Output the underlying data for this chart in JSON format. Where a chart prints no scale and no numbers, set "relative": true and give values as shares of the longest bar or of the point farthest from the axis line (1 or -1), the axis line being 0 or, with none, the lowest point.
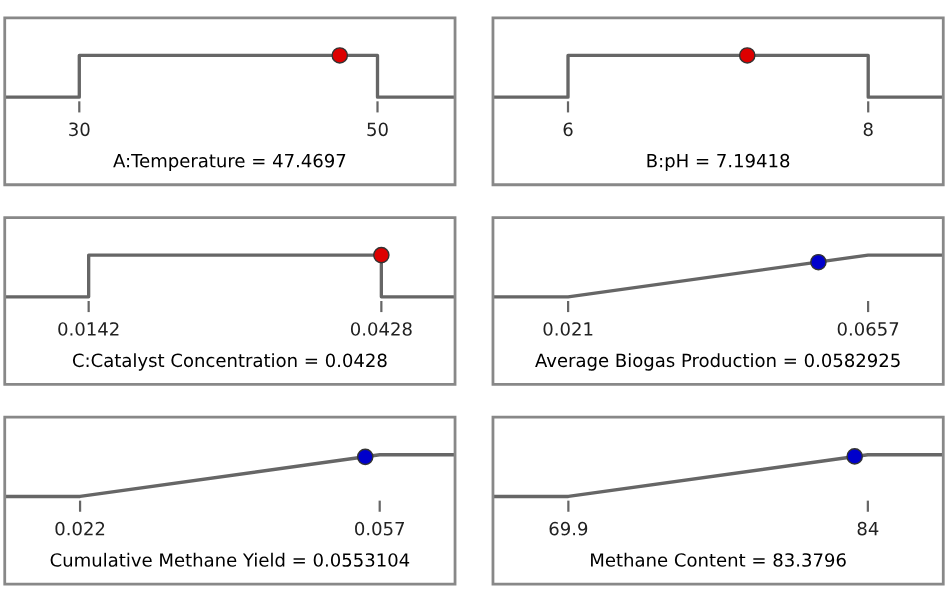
{
  "chart_data": [
    {
      "type": "line",
      "relative": true,
      "xlim": [
        25,
        55.2
      ],
      "xticks": [
        30,
        50
      ],
      "xlabel": "A:Temperature = 47.4697",
      "series": [
        {
          "color": "#666666",
          "x": [
            25,
            30,
            30,
            50,
            50,
            55.2
          ],
          "values": [
            0,
            0,
            1,
            1,
            0,
            0
          ]
        },
        {
          "type": "scatter",
          "marker": "circle",
          "color": "#dd0000",
          "x": [
            47.4697
          ],
          "values": [
            1
          ]
        }
      ]
    },
    {
      "type": "line",
      "relative": true,
      "xlim": [
        5.5,
        8.5
      ],
      "xticks": [
        6,
        8
      ],
      "xlabel": "B:pH = 7.19418",
      "series": [
        {
          "color": "#666666",
          "x": [
            5.5,
            6,
            6,
            8,
            8,
            8.5
          ],
          "values": [
            0,
            0,
            1,
            1,
            0,
            0
          ]
        },
        {
          "type": "scatter",
          "marker": "circle",
          "color": "#dd0000",
          "x": [
            7.19418
          ],
          "values": [
            1
          ]
        }
      ]
    },
    {
      "type": "line",
      "relative": true,
      "xlim": [
        0.006,
        0.05
      ],
      "xticks": [
        0.0142,
        0.0428
      ],
      "xlabel": "C:Catalyst Concentration = 0.0428",
      "series": [
        {
          "color": "#666666",
          "x": [
            0.006,
            0.0142,
            0.0142,
            0.0428,
            0.0428,
            0.05
          ],
          "values": [
            0,
            0,
            1,
            1,
            0,
            0
          ]
        },
        {
          "type": "scatter",
          "marker": "circle",
          "color": "#dd0000",
          "x": [
            0.0428
          ],
          "values": [
            1
          ]
        }
      ]
    },
    {
      "type": "line",
      "relative": true,
      "xlim": [
        0.0098,
        0.0769
      ],
      "xticks": [
        0.021,
        0.0657
      ],
      "xlabel": "Average Biogas Production = 0.0582925",
      "series": [
        {
          "color": "#666666",
          "x": [
            0.0098,
            0.021,
            0.0657,
            0.0769
          ],
          "values": [
            0,
            0,
            1,
            1
          ]
        },
        {
          "type": "scatter",
          "marker": "circle",
          "color": "#0000cc",
          "x": [
            0.0582925
          ],
          "values": [
            0.83
          ]
        }
      ]
    },
    {
      "type": "line",
      "relative": true,
      "xlim": [
        0.0132,
        0.0658
      ],
      "xticks": [
        0.022,
        0.057
      ],
      "xlabel": "Cumulative Methane Yield = 0.0553104",
      "series": [
        {
          "color": "#666666",
          "x": [
            0.0132,
            0.022,
            0.057,
            0.0658
          ],
          "values": [
            0,
            0,
            1,
            1
          ]
        },
        {
          "type": "scatter",
          "marker": "circle",
          "color": "#0000cc",
          "x": [
            0.0553104
          ],
          "values": [
            0.95
          ]
        }
      ]
    },
    {
      "type": "line",
      "relative": true,
      "xlim": [
        66.35,
        87.55
      ],
      "xticks": [
        69.9,
        84
      ],
      "xlabel": "Methane Content = 83.3796",
      "series": [
        {
          "color": "#666666",
          "x": [
            66.35,
            69.9,
            84,
            87.55
          ],
          "values": [
            0,
            0,
            1,
            1
          ]
        },
        {
          "type": "scatter",
          "marker": "circle",
          "color": "#0000cc",
          "x": [
            83.3796
          ],
          "values": [
            0.96
          ]
        }
      ]
    }
  ]
}
